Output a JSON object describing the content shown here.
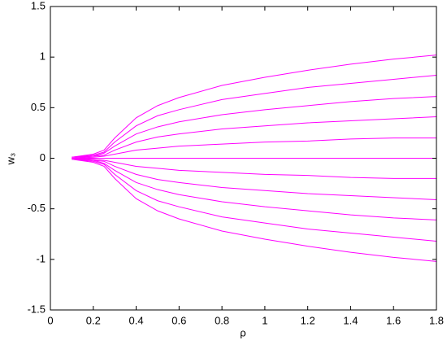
{
  "chart_data": {
    "type": "line",
    "x_label": "ρ",
    "y_label": "w₃",
    "x": [
      0.1,
      0.2,
      0.25,
      0.3,
      0.4,
      0.5,
      0.6,
      0.8,
      1.0,
      1.2,
      1.4,
      1.6,
      1.8
    ],
    "series": [
      {
        "color": "#ff00ff",
        "values": [
          0.01,
          0.04,
          0.08,
          0.2,
          0.4,
          0.52,
          0.6,
          0.72,
          0.8,
          0.87,
          0.93,
          0.98,
          1.02
        ]
      },
      {
        "color": "#ff00ff",
        "values": [
          0.01,
          0.03,
          0.06,
          0.16,
          0.32,
          0.42,
          0.48,
          0.58,
          0.64,
          0.7,
          0.74,
          0.78,
          0.82
        ]
      },
      {
        "color": "#ff00ff",
        "values": [
          0.01,
          0.02,
          0.05,
          0.12,
          0.24,
          0.31,
          0.36,
          0.43,
          0.48,
          0.52,
          0.56,
          0.59,
          0.61
        ]
      },
      {
        "color": "#ff00ff",
        "values": [
          0,
          0.02,
          0.03,
          0.08,
          0.16,
          0.21,
          0.24,
          0.29,
          0.32,
          0.35,
          0.37,
          0.39,
          0.41
        ]
      },
      {
        "color": "#ff00ff",
        "values": [
          0,
          0.01,
          0.02,
          0.04,
          0.08,
          0.1,
          0.12,
          0.14,
          0.16,
          0.17,
          0.19,
          0.2,
          0.2
        ]
      },
      {
        "color": "#ff00ff",
        "values": [
          0,
          0,
          0,
          0,
          0,
          0,
          0,
          0,
          0,
          0,
          0,
          0,
          0
        ]
      },
      {
        "color": "#ff00ff",
        "values": [
          0,
          -0.01,
          -0.02,
          -0.04,
          -0.08,
          -0.1,
          -0.12,
          -0.14,
          -0.16,
          -0.17,
          -0.19,
          -0.2,
          -0.2
        ]
      },
      {
        "color": "#ff00ff",
        "values": [
          0,
          -0.02,
          -0.03,
          -0.08,
          -0.16,
          -0.21,
          -0.24,
          -0.29,
          -0.32,
          -0.35,
          -0.37,
          -0.39,
          -0.41
        ]
      },
      {
        "color": "#ff00ff",
        "values": [
          -0.01,
          -0.02,
          -0.05,
          -0.12,
          -0.24,
          -0.31,
          -0.36,
          -0.43,
          -0.48,
          -0.52,
          -0.56,
          -0.59,
          -0.61
        ]
      },
      {
        "color": "#ff00ff",
        "values": [
          -0.01,
          -0.03,
          -0.06,
          -0.16,
          -0.32,
          -0.42,
          -0.48,
          -0.58,
          -0.64,
          -0.7,
          -0.74,
          -0.78,
          -0.82
        ]
      },
      {
        "color": "#ff00ff",
        "values": [
          -0.01,
          -0.04,
          -0.08,
          -0.2,
          -0.4,
          -0.52,
          -0.6,
          -0.72,
          -0.8,
          -0.87,
          -0.93,
          -0.98,
          -1.02
        ]
      }
    ],
    "xlim": [
      0,
      1.8
    ],
    "xticks": [
      0,
      0.2,
      0.4,
      0.6,
      0.8,
      1,
      1.2,
      1.4,
      1.6,
      1.8
    ],
    "ylim": [
      -1.5,
      1.5
    ],
    "yticks": [
      -1.5,
      -1,
      -0.5,
      0,
      0.5,
      1,
      1.5
    ],
    "grid": false
  }
}
